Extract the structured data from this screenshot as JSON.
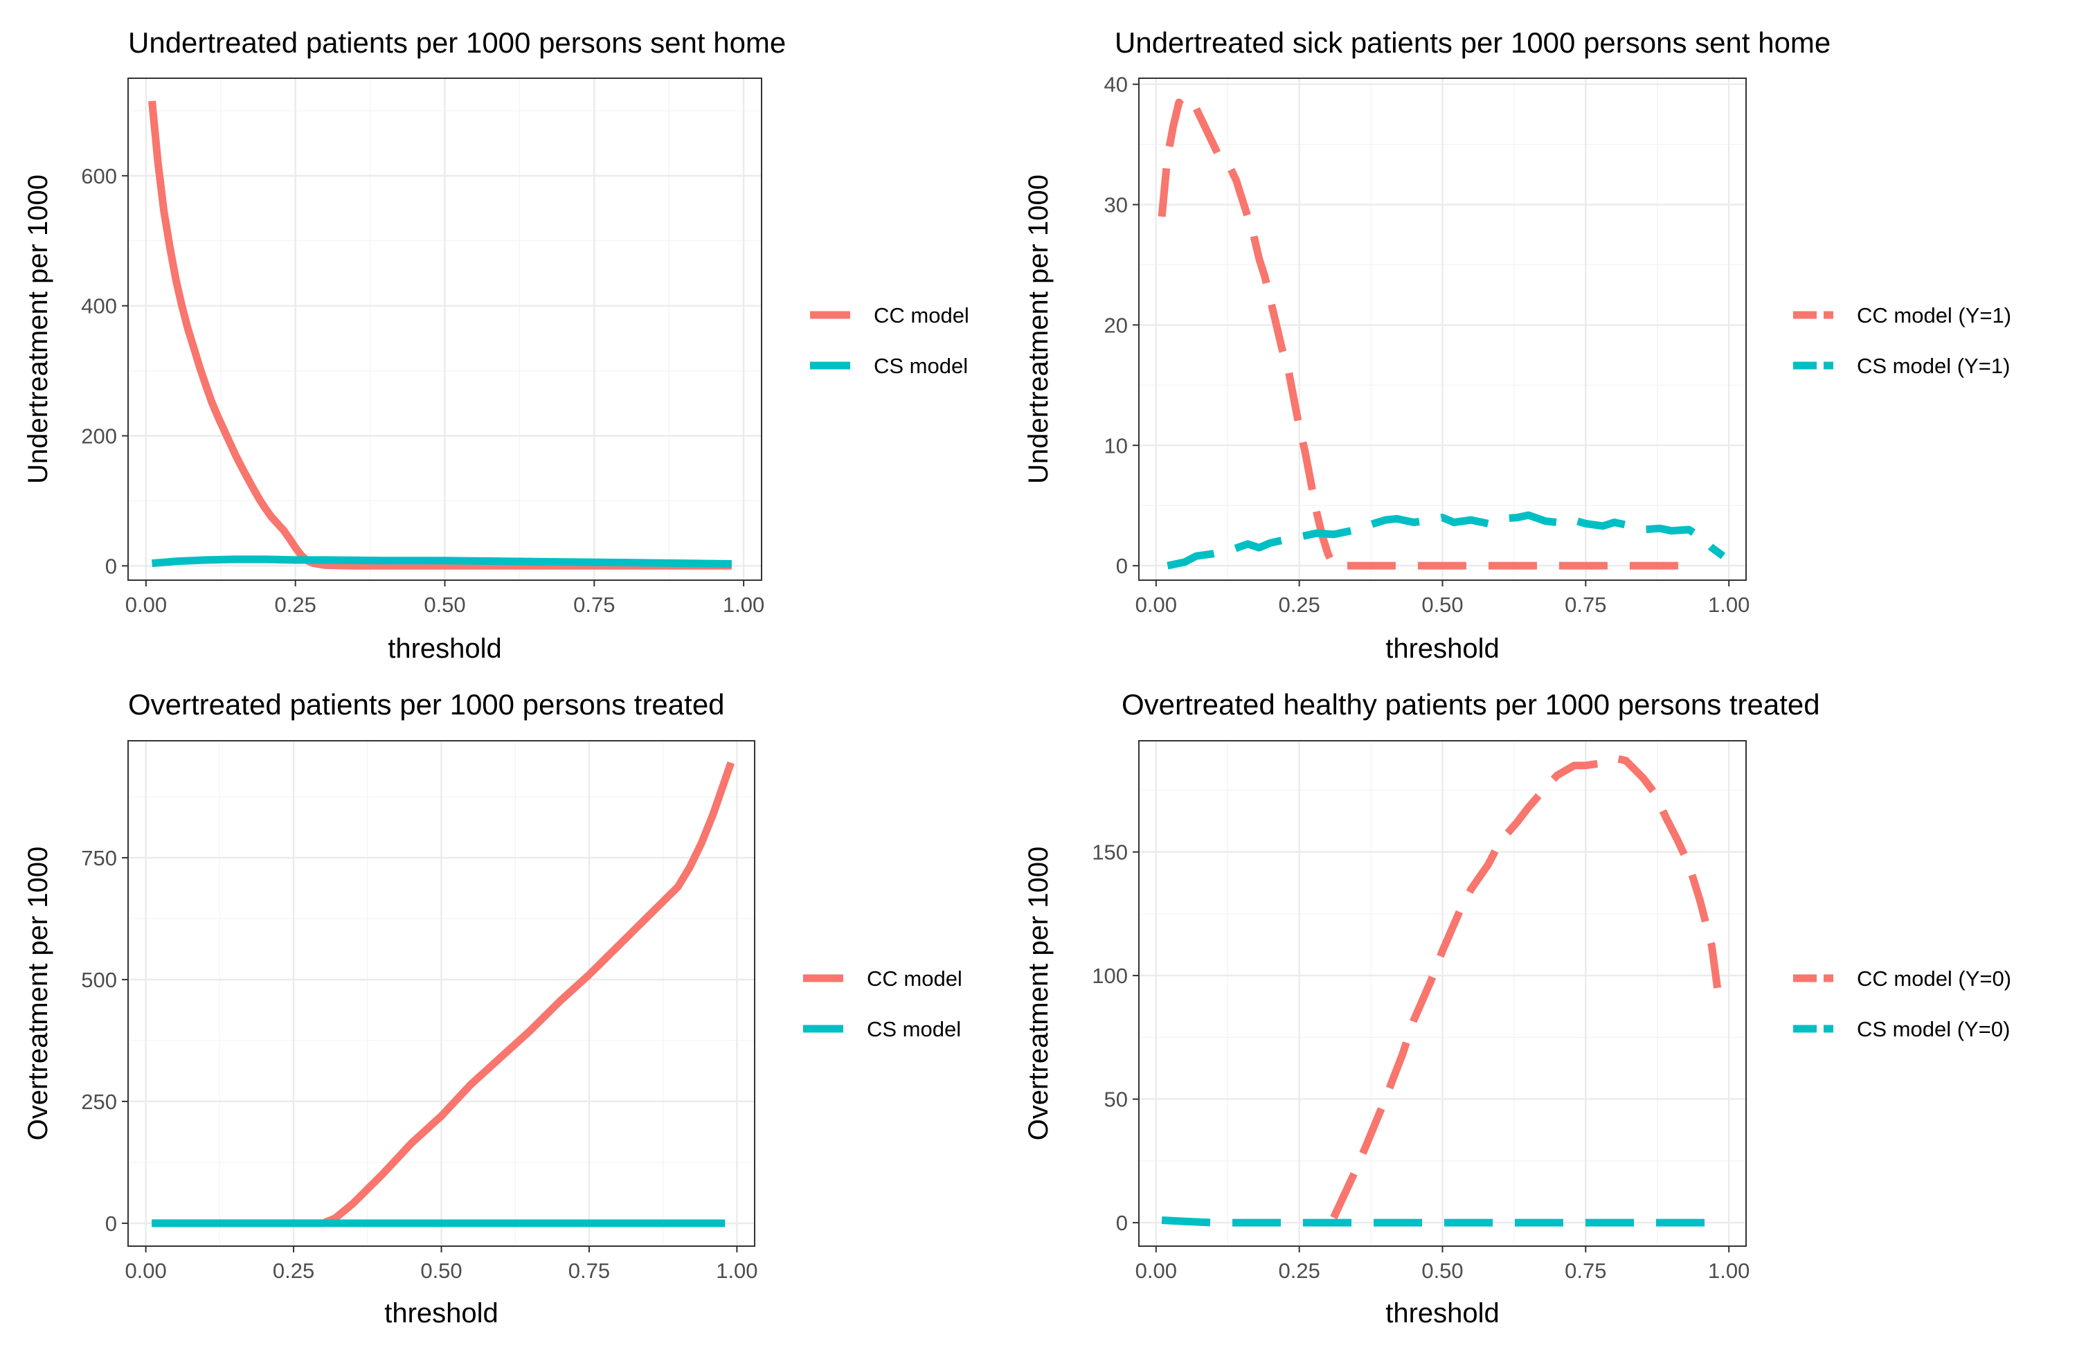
{
  "colors": {
    "cc": "#F8766D",
    "cs": "#00BFC4"
  },
  "chart_data": [
    {
      "type": "line",
      "title": "Undertreated patients per 1000 persons sent home",
      "xlabel": "threshold",
      "ylabel": "Undertreatment per 1000",
      "xlim": [
        -0.03,
        1.03
      ],
      "ylim": [
        -22,
        750
      ],
      "xticks": [
        0,
        0.25,
        0.5,
        0.75,
        1
      ],
      "xtick_labels": [
        "0.00",
        "0.25",
        "0.50",
        "0.75",
        "1.00"
      ],
      "yticks": [
        0,
        200,
        400,
        600
      ],
      "ytick_labels": [
        "0",
        "200",
        "400",
        "600"
      ],
      "grid": true,
      "legend_position": "right",
      "series": [
        {
          "name": "CC model",
          "color": "#F8766D",
          "dashed": false,
          "points": [
            [
              0.01,
              715
            ],
            [
              0.02,
              620
            ],
            [
              0.03,
              545
            ],
            [
              0.04,
              490
            ],
            [
              0.05,
              440
            ],
            [
              0.06,
              400
            ],
            [
              0.07,
              365
            ],
            [
              0.08,
              335
            ],
            [
              0.09,
              305
            ],
            [
              0.1,
              278
            ],
            [
              0.11,
              252
            ],
            [
              0.12,
              230
            ],
            [
              0.13,
              210
            ],
            [
              0.14,
              190
            ],
            [
              0.15,
              170
            ],
            [
              0.16,
              152
            ],
            [
              0.17,
              135
            ],
            [
              0.18,
              118
            ],
            [
              0.19,
              102
            ],
            [
              0.2,
              88
            ],
            [
              0.21,
              75
            ],
            [
              0.22,
              65
            ],
            [
              0.23,
              55
            ],
            [
              0.24,
              42
            ],
            [
              0.25,
              28
            ],
            [
              0.26,
              16
            ],
            [
              0.27,
              8
            ],
            [
              0.28,
              4
            ],
            [
              0.3,
              1
            ],
            [
              0.35,
              0
            ],
            [
              0.5,
              0
            ],
            [
              0.75,
              0
            ],
            [
              0.98,
              0
            ]
          ]
        },
        {
          "name": "CS model",
          "color": "#00BFC4",
          "dashed": false,
          "points": [
            [
              0.01,
              4
            ],
            [
              0.05,
              7
            ],
            [
              0.1,
              9
            ],
            [
              0.15,
              10
            ],
            [
              0.2,
              10
            ],
            [
              0.25,
              9
            ],
            [
              0.3,
              9
            ],
            [
              0.4,
              8
            ],
            [
              0.5,
              8
            ],
            [
              0.6,
              7
            ],
            [
              0.7,
              6
            ],
            [
              0.8,
              5
            ],
            [
              0.9,
              4
            ],
            [
              0.98,
              3
            ]
          ]
        }
      ]
    },
    {
      "type": "line",
      "title": "Undertreated sick patients per 1000 persons sent home",
      "xlabel": "threshold",
      "ylabel": "Undertreatment per 1000",
      "xlim": [
        -0.03,
        1.03
      ],
      "ylim": [
        -1.2,
        40.5
      ],
      "xticks": [
        0,
        0.25,
        0.5,
        0.75,
        1
      ],
      "xtick_labels": [
        "0.00",
        "0.25",
        "0.50",
        "0.75",
        "1.00"
      ],
      "yticks": [
        0,
        10,
        20,
        30,
        40
      ],
      "ytick_labels": [
        "0",
        "10",
        "20",
        "30",
        "40"
      ],
      "grid": true,
      "legend_position": "right",
      "series": [
        {
          "name": "CC model (Y=1)",
          "color": "#F8766D",
          "dashed": true,
          "points": [
            [
              0.01,
              29
            ],
            [
              0.02,
              34
            ],
            [
              0.03,
              36.5
            ],
            [
              0.04,
              38.5
            ],
            [
              0.05,
              38
            ],
            [
              0.06,
              37.5
            ],
            [
              0.07,
              38
            ],
            [
              0.08,
              37
            ],
            [
              0.09,
              36
            ],
            [
              0.1,
              35
            ],
            [
              0.11,
              34
            ],
            [
              0.12,
              33.5
            ],
            [
              0.13,
              33
            ],
            [
              0.14,
              32
            ],
            [
              0.15,
              30.5
            ],
            [
              0.16,
              29
            ],
            [
              0.17,
              27.5
            ],
            [
              0.18,
              25.5
            ],
            [
              0.19,
              24
            ],
            [
              0.2,
              22
            ],
            [
              0.21,
              20
            ],
            [
              0.22,
              18
            ],
            [
              0.23,
              16.5
            ],
            [
              0.24,
              14
            ],
            [
              0.25,
              11.5
            ],
            [
              0.26,
              9.5
            ],
            [
              0.27,
              7
            ],
            [
              0.28,
              4.5
            ],
            [
              0.29,
              2.5
            ],
            [
              0.3,
              1
            ],
            [
              0.31,
              0
            ],
            [
              0.35,
              0
            ],
            [
              0.5,
              0
            ],
            [
              0.75,
              0
            ],
            [
              0.95,
              0
            ]
          ]
        },
        {
          "name": "CS model (Y=1)",
          "color": "#00BFC4",
          "dashed": true,
          "points": [
            [
              0.02,
              0
            ],
            [
              0.05,
              0.3
            ],
            [
              0.07,
              0.8
            ],
            [
              0.1,
              1.0
            ],
            [
              0.13,
              1.3
            ],
            [
              0.16,
              1.8
            ],
            [
              0.18,
              1.5
            ],
            [
              0.2,
              1.9
            ],
            [
              0.22,
              2.1
            ],
            [
              0.25,
              2.4
            ],
            [
              0.28,
              2.7
            ],
            [
              0.31,
              2.6
            ],
            [
              0.35,
              3.0
            ],
            [
              0.38,
              3.5
            ],
            [
              0.4,
              3.8
            ],
            [
              0.42,
              3.9
            ],
            [
              0.45,
              3.6
            ],
            [
              0.48,
              3.8
            ],
            [
              0.5,
              4.0
            ],
            [
              0.52,
              3.6
            ],
            [
              0.55,
              3.8
            ],
            [
              0.58,
              3.5
            ],
            [
              0.6,
              3.9
            ],
            [
              0.63,
              4.0
            ],
            [
              0.65,
              4.2
            ],
            [
              0.68,
              3.7
            ],
            [
              0.7,
              3.6
            ],
            [
              0.72,
              3.9
            ],
            [
              0.75,
              3.5
            ],
            [
              0.78,
              3.3
            ],
            [
              0.8,
              3.6
            ],
            [
              0.83,
              3.3
            ],
            [
              0.85,
              3.0
            ],
            [
              0.88,
              3.1
            ],
            [
              0.9,
              2.9
            ],
            [
              0.93,
              3.0
            ],
            [
              0.95,
              2.4
            ],
            [
              0.97,
              1.5
            ],
            [
              0.99,
              0.8
            ]
          ]
        }
      ]
    },
    {
      "type": "line",
      "title": "Overtreated patients per 1000 persons treated",
      "xlabel": "threshold",
      "ylabel": "Overtreatment per 1000",
      "xlim": [
        -0.03,
        1.03
      ],
      "ylim": [
        -47,
        990
      ],
      "xticks": [
        0,
        0.25,
        0.5,
        0.75,
        1
      ],
      "xtick_labels": [
        "0.00",
        "0.25",
        "0.50",
        "0.75",
        "1.00"
      ],
      "yticks": [
        0,
        250,
        500,
        750
      ],
      "ytick_labels": [
        "0",
        "250",
        "500",
        "750"
      ],
      "grid": true,
      "legend_position": "right",
      "series": [
        {
          "name": "CC model",
          "color": "#F8766D",
          "dashed": false,
          "points": [
            [
              0.01,
              0
            ],
            [
              0.3,
              0
            ],
            [
              0.32,
              10
            ],
            [
              0.35,
              40
            ],
            [
              0.4,
              100
            ],
            [
              0.45,
              165
            ],
            [
              0.5,
              220
            ],
            [
              0.55,
              285
            ],
            [
              0.6,
              340
            ],
            [
              0.65,
              395
            ],
            [
              0.7,
              455
            ],
            [
              0.75,
              510
            ],
            [
              0.8,
              570
            ],
            [
              0.85,
              630
            ],
            [
              0.9,
              690
            ],
            [
              0.92,
              730
            ],
            [
              0.94,
              780
            ],
            [
              0.96,
              840
            ],
            [
              0.98,
              910
            ],
            [
              0.99,
              945
            ]
          ]
        },
        {
          "name": "CS model",
          "color": "#00BFC4",
          "dashed": false,
          "points": [
            [
              0.01,
              0
            ],
            [
              0.5,
              0
            ],
            [
              0.98,
              0
            ]
          ]
        }
      ]
    },
    {
      "type": "line",
      "title": "Overtreated healthy patients per 1000 persons treated",
      "xlabel": "threshold",
      "ylabel": "Overtreatment per 1000",
      "xlim": [
        -0.03,
        1.03
      ],
      "ylim": [
        -9.5,
        195
      ],
      "xticks": [
        0,
        0.25,
        0.5,
        0.75,
        1
      ],
      "xtick_labels": [
        "0.00",
        "0.25",
        "0.50",
        "0.75",
        "1.00"
      ],
      "yticks": [
        0,
        50,
        100,
        150
      ],
      "ytick_labels": [
        "0",
        "50",
        "100",
        "150"
      ],
      "grid": true,
      "legend_position": "right",
      "series": [
        {
          "name": "CC model (Y=0)",
          "color": "#F8766D",
          "dashed": true,
          "points": [
            [
              0.31,
              2
            ],
            [
              0.33,
              12
            ],
            [
              0.35,
              22
            ],
            [
              0.37,
              33
            ],
            [
              0.4,
              50
            ],
            [
              0.43,
              68
            ],
            [
              0.45,
              82
            ],
            [
              0.48,
              98
            ],
            [
              0.5,
              110
            ],
            [
              0.53,
              126
            ],
            [
              0.55,
              135
            ],
            [
              0.58,
              145
            ],
            [
              0.6,
              154
            ],
            [
              0.63,
              162
            ],
            [
              0.65,
              168
            ],
            [
              0.68,
              176
            ],
            [
              0.7,
              181
            ],
            [
              0.73,
              185
            ],
            [
              0.75,
              185
            ],
            [
              0.78,
              186
            ],
            [
              0.8,
              188
            ],
            [
              0.82,
              187
            ],
            [
              0.85,
              180
            ],
            [
              0.87,
              174
            ],
            [
              0.89,
              164
            ],
            [
              0.91,
              155
            ],
            [
              0.93,
              145
            ],
            [
              0.95,
              130
            ],
            [
              0.97,
              112
            ],
            [
              0.98,
              95
            ]
          ]
        },
        {
          "name": "CS model (Y=0)",
          "color": "#00BFC4",
          "dashed": true,
          "points": [
            [
              0.01,
              1
            ],
            [
              0.05,
              0.5
            ],
            [
              0.1,
              0
            ],
            [
              0.5,
              0
            ],
            [
              0.98,
              0
            ]
          ]
        }
      ]
    }
  ]
}
